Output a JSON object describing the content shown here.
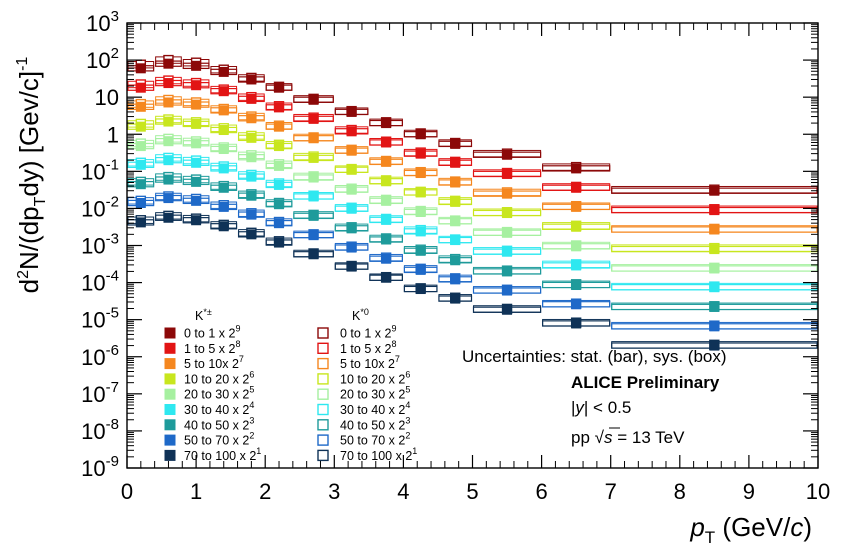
{
  "chart_data": {
    "type": "scatter",
    "title": "",
    "xlabel": "p",
    "xlabel_sub": "T",
    "xlabel_unit": " (GeV/c)",
    "ylabel": "d2N/(dpTdy) [Gev/c]-1",
    "xlim": [
      0,
      10
    ],
    "ylim": [
      1e-09,
      1000
    ],
    "yscale": "log",
    "x_ticks": [
      "0",
      "1",
      "2",
      "3",
      "4",
      "5",
      "6",
      "7",
      "8",
      "9",
      "10"
    ],
    "y_tick_exponents": [
      "3",
      "2",
      "",
      "",
      "-1",
      "-2",
      "-3",
      "-4",
      "-5",
      "-6",
      "-7",
      "-8",
      "-9"
    ],
    "y_tick_plain": {
      "2": "10",
      "3": "1"
    },
    "grid": false,
    "legend_placement": "bottom-left",
    "bins": [
      [
        0,
        0.4
      ],
      [
        0.4,
        0.8
      ],
      [
        0.8,
        1.2
      ],
      [
        1.2,
        1.6
      ],
      [
        1.6,
        2.0
      ],
      [
        2.0,
        2.4
      ],
      [
        2.4,
        3.0
      ],
      [
        3.0,
        3.5
      ],
      [
        3.5,
        4.0
      ],
      [
        4.0,
        4.5
      ],
      [
        4.5,
        5.0
      ],
      [
        5.0,
        6.0
      ],
      [
        6.0,
        7.0
      ],
      [
        7.0,
        10.0
      ]
    ],
    "legend_groups": [
      {
        "title": "K*±",
        "marker": "filled"
      },
      {
        "title": "K*0",
        "marker": "open"
      }
    ],
    "series": [
      {
        "name": "0 to 1 x 2",
        "exp": "9",
        "color": "#8c0808",
        "charged": [
          60,
          80,
          70,
          48,
          30,
          18,
          8.5,
          4.0,
          2.0,
          1.0,
          0.55,
          0.28,
          0.12,
          0.03
        ],
        "neutral": [
          75,
          100,
          85,
          55,
          33,
          19,
          9.0,
          4.2,
          2.1,
          1.05,
          0.58,
          0.3,
          0.13,
          0.032
        ]
      },
      {
        "name": "1 to 5 x 2",
        "exp": "8",
        "color": "#e21414",
        "charged": [
          18,
          24,
          21,
          14.5,
          9,
          5.3,
          2.6,
          1.2,
          0.6,
          0.3,
          0.17,
          0.085,
          0.036,
          0.009
        ],
        "neutral": [
          22,
          28,
          24,
          16,
          10,
          5.7,
          2.8,
          1.3,
          0.63,
          0.32,
          0.18,
          0.09,
          0.038,
          0.0095
        ]
      },
      {
        "name": "5 to 10x 2",
        "exp": "7",
        "color": "#f5871f",
        "charged": [
          5.5,
          7.2,
          6.3,
          4.4,
          2.7,
          1.6,
          0.78,
          0.36,
          0.18,
          0.09,
          0.05,
          0.025,
          0.011,
          0.0027
        ],
        "neutral": [
          6.5,
          8.4,
          7.2,
          4.8,
          3.0,
          1.7,
          0.82,
          0.38,
          0.19,
          0.095,
          0.053,
          0.027,
          0.0115,
          0.0028
        ]
      },
      {
        "name": "10 to 20 x 2",
        "exp": "6",
        "color": "#c8e61e",
        "charged": [
          1.6,
          2.2,
          1.9,
          1.3,
          0.8,
          0.48,
          0.23,
          0.11,
          0.054,
          0.027,
          0.015,
          0.0075,
          0.0032,
          0.0008
        ],
        "neutral": [
          1.9,
          2.5,
          2.1,
          1.45,
          0.9,
          0.52,
          0.25,
          0.115,
          0.057,
          0.028,
          0.016,
          0.0079,
          0.0034,
          0.00085
        ]
      },
      {
        "name": "20 to 30 x 2",
        "exp": "5",
        "color": "#a6f0a0",
        "charged": [
          0.48,
          0.65,
          0.57,
          0.4,
          0.24,
          0.14,
          0.068,
          0.032,
          0.016,
          0.008,
          0.0045,
          0.0022,
          0.00095,
          0.00024
        ],
        "neutral": [
          0.56,
          0.75,
          0.64,
          0.44,
          0.27,
          0.155,
          0.073,
          0.034,
          0.017,
          0.0085,
          0.0047,
          0.0023,
          0.001,
          0.00025
        ]
      },
      {
        "name": "30 to 40 x 2",
        "exp": "4",
        "color": "#2ee8f0",
        "charged": [
          0.15,
          0.2,
          0.17,
          0.12,
          0.072,
          0.043,
          0.021,
          0.0098,
          0.0049,
          0.0024,
          0.0014,
          0.00068,
          0.00029,
          7.5e-05
        ],
        "neutral": [
          0.17,
          0.23,
          0.195,
          0.135,
          0.08,
          0.047,
          0.022,
          0.0104,
          0.0052,
          0.0026,
          0.00145,
          0.00072,
          0.00031,
          7.8e-05
        ]
      },
      {
        "name": "40 to 50 x 2",
        "exp": "3",
        "color": "#1e9b9b",
        "charged": [
          0.045,
          0.06,
          0.052,
          0.036,
          0.022,
          0.013,
          0.0063,
          0.0029,
          0.00145,
          0.00072,
          0.0004,
          0.0002,
          8.6e-05,
          2.2e-05
        ],
        "neutral": [
          0.052,
          0.07,
          0.06,
          0.04,
          0.024,
          0.014,
          0.0067,
          0.0031,
          0.00155,
          0.00077,
          0.00043,
          0.00021,
          9e-05,
          2.3e-05
        ]
      },
      {
        "name": "50 to 70 x 2",
        "exp": "2",
        "color": "#1e69c8",
        "charged": [
          0.014,
          0.019,
          0.016,
          0.011,
          0.0068,
          0.004,
          0.0019,
          0.00088,
          0.00044,
          0.00022,
          0.000122,
          6.1e-05,
          2.6e-05,
          6.6e-06
        ],
        "neutral": [
          0.016,
          0.021,
          0.018,
          0.0122,
          0.0074,
          0.0043,
          0.002,
          0.00093,
          0.00047,
          0.000235,
          0.00013,
          6.4e-05,
          2.7e-05,
          6.9e-06
        ]
      },
      {
        "name": "70 to 100 x 2",
        "exp": "1",
        "color": "#0f3257",
        "charged": [
          0.0042,
          0.0056,
          0.0048,
          0.0033,
          0.002,
          0.0012,
          0.00058,
          0.00027,
          0.000135,
          6.7e-05,
          3.7e-05,
          1.85e-05,
          7.9e-06,
          2e-06
        ],
        "neutral": [
          0.0048,
          0.0063,
          0.0053,
          0.0036,
          0.0022,
          0.0013,
          0.00061,
          0.00028,
          0.00014,
          7e-05,
          3.9e-05,
          1.95e-05,
          8.3e-06,
          2.1e-06
        ]
      }
    ],
    "info": {
      "uncertainties": "Uncertainties: stat. (bar), sys. (box)",
      "experiment": "ALICE Preliminary",
      "rapidity": "|y| < 0.5",
      "energy_prefix": "pp ",
      "energy_sqrt": "s",
      "energy_value": " = 13 TeV"
    }
  }
}
